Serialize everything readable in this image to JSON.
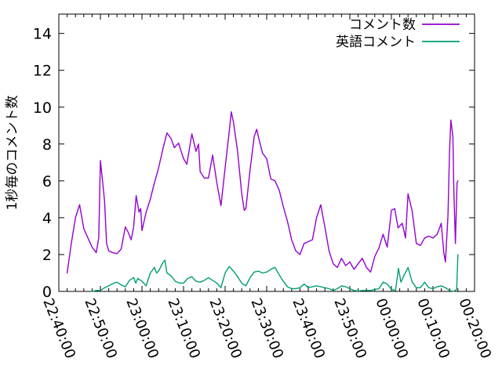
{
  "chart_data": {
    "type": "line",
    "title": "",
    "xlabel": "",
    "ylabel": "1秒毎のコメント数",
    "grid": false,
    "legend_position": "top-right-inside",
    "ylim": [
      0,
      15.05
    ],
    "y_ticks": [
      0,
      2,
      4,
      6,
      8,
      10,
      12,
      14
    ],
    "x_axis_kind": "time",
    "x_tick_labels": [
      "22:40:00",
      "22:50:00",
      "23:00:00",
      "23:10:00",
      "23:20:00",
      "23:30:00",
      "23:40:00",
      "23:50:00",
      "00:00:00",
      "00:10:00",
      "00:20:00"
    ],
    "x_tick_minutes": [
      0,
      10,
      20,
      30,
      40,
      50,
      60,
      70,
      80,
      90,
      100
    ],
    "x_minor_tick_every_minutes": 2,
    "x_range_minutes": [
      0,
      100
    ],
    "series": [
      {
        "name": "コメント数",
        "color": "#9400d3",
        "points_format": "[minutes_after_22:40:00, comments_per_second]",
        "points": [
          [
            2,
            1.0
          ],
          [
            3,
            2.6
          ],
          [
            4,
            4.0
          ],
          [
            5,
            4.7
          ],
          [
            6,
            3.4
          ],
          [
            7,
            2.9
          ],
          [
            8,
            2.4
          ],
          [
            9,
            2.1
          ],
          [
            9.6,
            2.9
          ],
          [
            10,
            7.1
          ],
          [
            10.6,
            5.8
          ],
          [
            11,
            4.9
          ],
          [
            11.5,
            2.6
          ],
          [
            12,
            2.2
          ],
          [
            13,
            2.1
          ],
          [
            14,
            2.05
          ],
          [
            15,
            2.3
          ],
          [
            16,
            3.5
          ],
          [
            16.7,
            3.2
          ],
          [
            17.4,
            2.8
          ],
          [
            18,
            3.5
          ],
          [
            18.6,
            5.2
          ],
          [
            19.3,
            4.3
          ],
          [
            19.7,
            4.5
          ],
          [
            20,
            3.3
          ],
          [
            21,
            4.3
          ],
          [
            22,
            5.0
          ],
          [
            23,
            5.9
          ],
          [
            24,
            6.7
          ],
          [
            25,
            7.7
          ],
          [
            26,
            8.6
          ],
          [
            27,
            8.3
          ],
          [
            27.8,
            7.8
          ],
          [
            28.8,
            8.05
          ],
          [
            30,
            7.2
          ],
          [
            30.8,
            6.9
          ],
          [
            32,
            8.55
          ],
          [
            33,
            7.6
          ],
          [
            33.6,
            8.0
          ],
          [
            34,
            6.5
          ],
          [
            35,
            6.15
          ],
          [
            36,
            6.15
          ],
          [
            37,
            7.4
          ],
          [
            38,
            5.9
          ],
          [
            39,
            4.65
          ],
          [
            40,
            6.7
          ],
          [
            41,
            8.7
          ],
          [
            41.5,
            9.75
          ],
          [
            42,
            9.2
          ],
          [
            43,
            7.6
          ],
          [
            44,
            5.3
          ],
          [
            44.6,
            4.4
          ],
          [
            45,
            4.5
          ],
          [
            46,
            6.6
          ],
          [
            47,
            8.4
          ],
          [
            47.6,
            8.8
          ],
          [
            48,
            8.4
          ],
          [
            49,
            7.5
          ],
          [
            50,
            7.2
          ],
          [
            51,
            6.1
          ],
          [
            52,
            6.0
          ],
          [
            53,
            5.5
          ],
          [
            54,
            4.6
          ],
          [
            55,
            3.8
          ],
          [
            56,
            2.8
          ],
          [
            57,
            2.2
          ],
          [
            58,
            2.0
          ],
          [
            59,
            2.6
          ],
          [
            60,
            2.7
          ],
          [
            61,
            2.8
          ],
          [
            62,
            4.0
          ],
          [
            63,
            4.7
          ],
          [
            64,
            3.5
          ],
          [
            65,
            2.2
          ],
          [
            66,
            1.5
          ],
          [
            67,
            1.3
          ],
          [
            68,
            1.8
          ],
          [
            69,
            1.4
          ],
          [
            70,
            1.6
          ],
          [
            71,
            1.2
          ],
          [
            72,
            1.5
          ],
          [
            73,
            1.8
          ],
          [
            74,
            1.3
          ],
          [
            75,
            1.05
          ],
          [
            76,
            1.9
          ],
          [
            77,
            2.35
          ],
          [
            78,
            3.1
          ],
          [
            79,
            2.4
          ],
          [
            80,
            4.4
          ],
          [
            80.8,
            4.5
          ],
          [
            81.6,
            3.45
          ],
          [
            82.6,
            3.7
          ],
          [
            83.4,
            2.9
          ],
          [
            84,
            5.3
          ],
          [
            85,
            4.35
          ],
          [
            86,
            2.6
          ],
          [
            87,
            2.5
          ],
          [
            88,
            2.9
          ],
          [
            89,
            3.0
          ],
          [
            90,
            2.9
          ],
          [
            91,
            3.1
          ],
          [
            92,
            3.7
          ],
          [
            92.6,
            2.1
          ],
          [
            93,
            1.6
          ],
          [
            93.6,
            4.1
          ],
          [
            94,
            7.7
          ],
          [
            94.3,
            9.3
          ],
          [
            94.8,
            8.4
          ],
          [
            95,
            5.7
          ],
          [
            95.4,
            2.6
          ],
          [
            95.8,
            5.9
          ],
          [
            96,
            6.0
          ]
        ]
      },
      {
        "name": "英語コメント",
        "color": "#009e73",
        "points_format": "[minutes_after_22:40:00, comments_per_second]",
        "points": [
          [
            8,
            0.0
          ],
          [
            9,
            0.05
          ],
          [
            10,
            0.05
          ],
          [
            11,
            0.2
          ],
          [
            12,
            0.3
          ],
          [
            13,
            0.42
          ],
          [
            14,
            0.5
          ],
          [
            15,
            0.35
          ],
          [
            16,
            0.25
          ],
          [
            17,
            0.6
          ],
          [
            18,
            0.75
          ],
          [
            18.5,
            0.45
          ],
          [
            19,
            0.7
          ],
          [
            20,
            0.55
          ],
          [
            21,
            0.3
          ],
          [
            22,
            1.0
          ],
          [
            23,
            1.3
          ],
          [
            23.5,
            1.0
          ],
          [
            24,
            1.1
          ],
          [
            25,
            1.55
          ],
          [
            25.5,
            1.7
          ],
          [
            26,
            1.0
          ],
          [
            27,
            0.85
          ],
          [
            28,
            0.55
          ],
          [
            29,
            0.45
          ],
          [
            30,
            0.45
          ],
          [
            31,
            0.7
          ],
          [
            32,
            0.8
          ],
          [
            33,
            0.55
          ],
          [
            34,
            0.5
          ],
          [
            35,
            0.6
          ],
          [
            36,
            0.75
          ],
          [
            37,
            0.6
          ],
          [
            38,
            0.45
          ],
          [
            39,
            0.2
          ],
          [
            40,
            1.0
          ],
          [
            41,
            1.35
          ],
          [
            42,
            1.1
          ],
          [
            43,
            0.8
          ],
          [
            44,
            0.45
          ],
          [
            45,
            0.3
          ],
          [
            46,
            0.75
          ],
          [
            47,
            1.05
          ],
          [
            48,
            1.1
          ],
          [
            49,
            1.0
          ],
          [
            50,
            1.05
          ],
          [
            51,
            1.2
          ],
          [
            52,
            1.3
          ],
          [
            53,
            0.9
          ],
          [
            54,
            0.55
          ],
          [
            55,
            0.25
          ],
          [
            56,
            0.15
          ],
          [
            57,
            0.15
          ],
          [
            58,
            0.2
          ],
          [
            59,
            0.4
          ],
          [
            60,
            0.2
          ],
          [
            61,
            0.25
          ],
          [
            62,
            0.3
          ],
          [
            63,
            0.25
          ],
          [
            64,
            0.2
          ],
          [
            65,
            0.15
          ],
          [
            66,
            0.05
          ],
          [
            67,
            0.15
          ],
          [
            68,
            0.3
          ],
          [
            69,
            0.25
          ],
          [
            70,
            0.15
          ],
          [
            71,
            0.05
          ],
          [
            72,
            0.02
          ],
          [
            73,
            0.05
          ],
          [
            74,
            0.05
          ],
          [
            75,
            0.05
          ],
          [
            76,
            0.1
          ],
          [
            77,
            0.15
          ],
          [
            78,
            0.5
          ],
          [
            79,
            0.4
          ],
          [
            80,
            0.1
          ],
          [
            81,
            0.05
          ],
          [
            81.7,
            1.25
          ],
          [
            82.3,
            0.5
          ],
          [
            83,
            0.85
          ],
          [
            84,
            1.3
          ],
          [
            85,
            0.5
          ],
          [
            86,
            0.2
          ],
          [
            87,
            0.2
          ],
          [
            88,
            0.5
          ],
          [
            89,
            0.2
          ],
          [
            90,
            0.15
          ],
          [
            91,
            0.25
          ],
          [
            92,
            0.3
          ],
          [
            93,
            0.2
          ],
          [
            94,
            0.05
          ],
          [
            95,
            0.0
          ],
          [
            95.7,
            0.1
          ],
          [
            96,
            2.0
          ]
        ]
      }
    ]
  },
  "colors": {
    "background": "#ffffff",
    "axis": "#000000"
  }
}
